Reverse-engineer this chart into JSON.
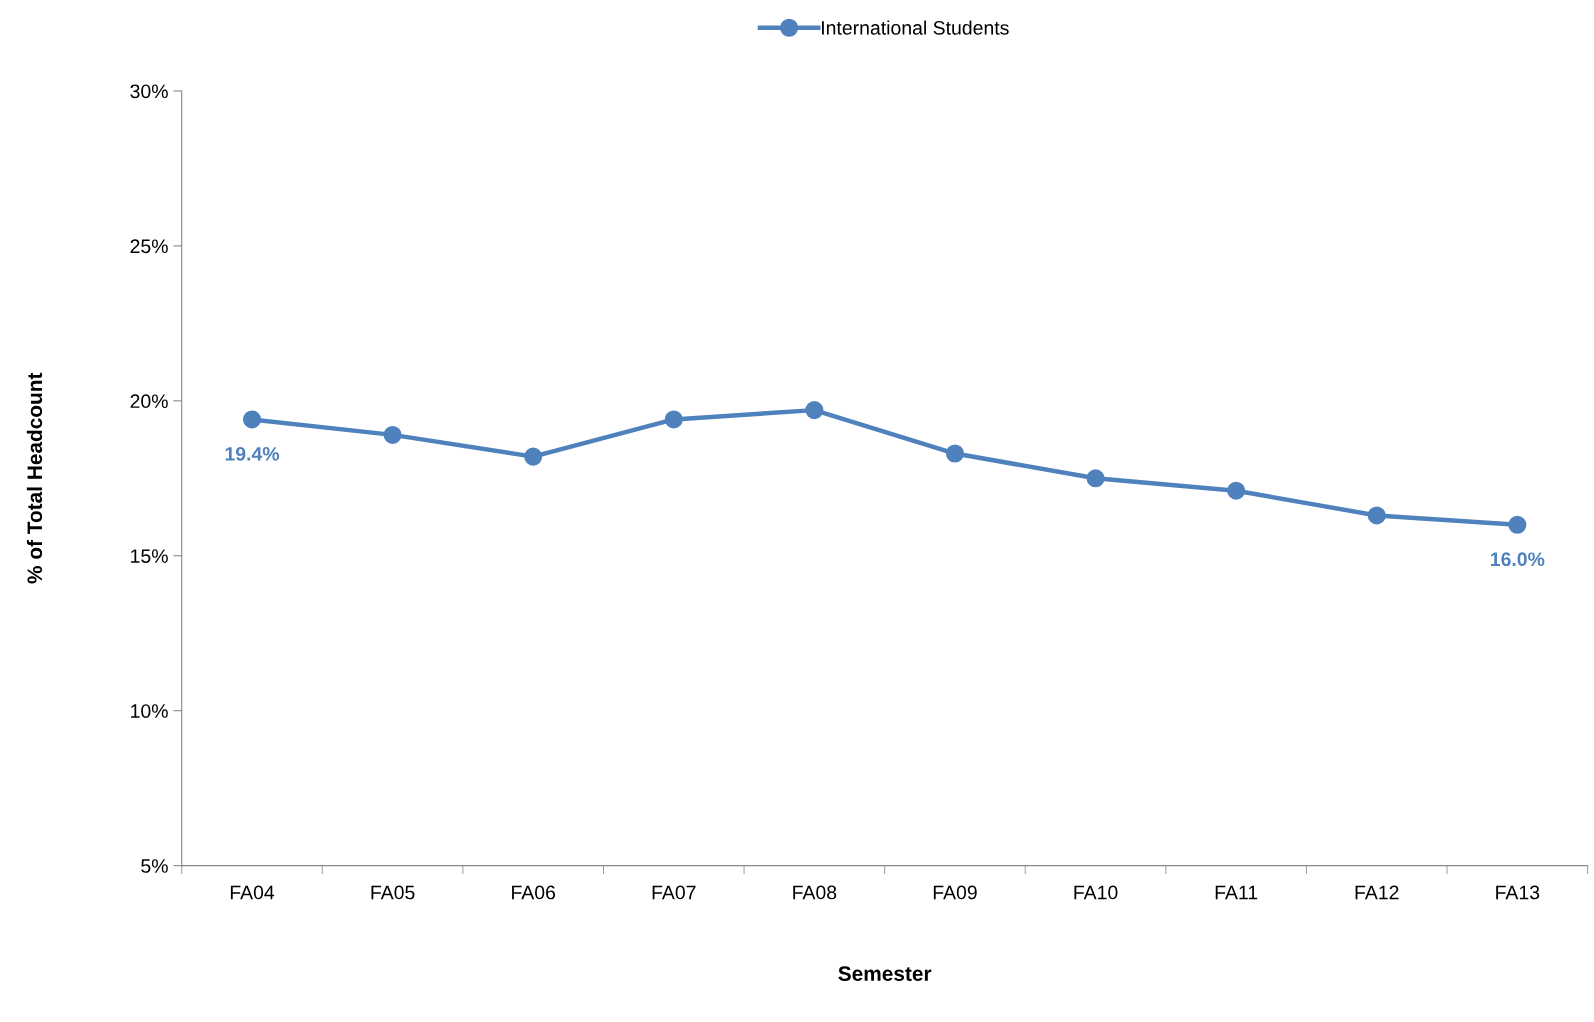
{
  "chart_data": {
    "type": "line",
    "xlabel": "Semester",
    "ylabel": "% of Total Headcount",
    "categories": [
      "FA04",
      "FA05",
      "FA06",
      "FA07",
      "FA08",
      "FA09",
      "FA10",
      "FA11",
      "FA12",
      "FA13"
    ],
    "series": [
      {
        "name": "International Students",
        "color": "#4f81bd",
        "values": [
          19.4,
          18.9,
          18.2,
          19.4,
          19.7,
          18.3,
          17.5,
          17.1,
          16.3,
          16.0
        ],
        "value_labels": [
          "19.4%",
          null,
          null,
          null,
          null,
          null,
          null,
          null,
          null,
          "16.0%"
        ]
      }
    ],
    "ylim": [
      5,
      30
    ],
    "yticks": [
      {
        "value": 5,
        "label": "5%"
      },
      {
        "value": 10,
        "label": "10%"
      },
      {
        "value": 15,
        "label": "15%"
      },
      {
        "value": 20,
        "label": "20%"
      },
      {
        "value": 25,
        "label": "25%"
      },
      {
        "value": 30,
        "label": "30%"
      }
    ],
    "grid": false,
    "legend": "top",
    "marker": "circle",
    "line_style": "solid"
  }
}
